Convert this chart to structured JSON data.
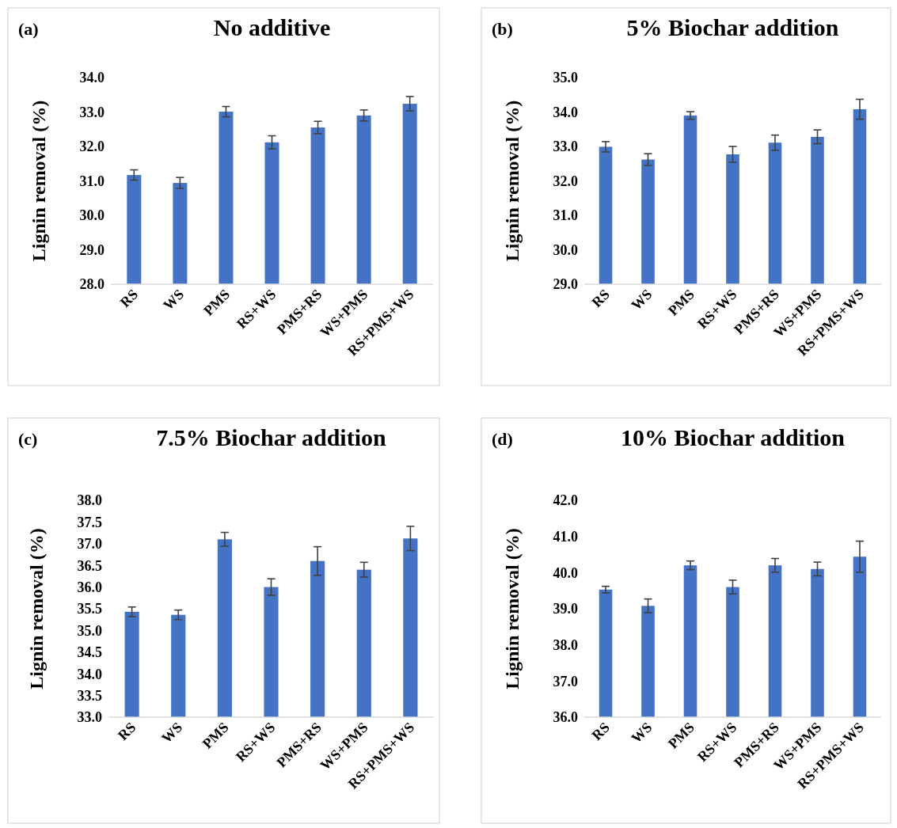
{
  "chart_data": [
    {
      "type": "bar",
      "title": "No additive",
      "ylabel": "Lignin removal (%)",
      "annotations": [
        "(a)"
      ],
      "categories": [
        "RS",
        "WS",
        "PMS",
        "RS+WS",
        "PMS+RS",
        "WS+PMS",
        "RS+PMS+WS"
      ],
      "color": "#4472c4",
      "values": [
        31.17,
        30.94,
        33.01,
        32.12,
        32.55,
        32.9,
        33.24
      ],
      "errors": [
        0.15,
        0.16,
        0.15,
        0.19,
        0.18,
        0.16,
        0.21
      ],
      "ylim": [
        28,
        34
      ],
      "yticks": [
        {
          "value": 28,
          "label": "28.0"
        },
        {
          "value": 29,
          "label": "29.0"
        },
        {
          "value": 30,
          "label": "30.0"
        },
        {
          "value": 31,
          "label": "31.0"
        },
        {
          "value": 32,
          "label": "32.0"
        },
        {
          "value": 33,
          "label": "33.0"
        },
        {
          "value": 34,
          "label": "34.0"
        }
      ]
    },
    {
      "type": "bar",
      "title": "5% Biochar addition",
      "ylabel": "Lignin removal (%)",
      "annotations": [
        "(b)"
      ],
      "categories": [
        "RS",
        "WS",
        "PMS",
        "RS+WS",
        "PMS+RS",
        "WS+PMS",
        "RS+PMS+WS"
      ],
      "color": "#4472c4",
      "values": [
        32.99,
        32.62,
        33.9,
        32.77,
        33.11,
        33.28,
        34.08
      ],
      "errors": [
        0.15,
        0.17,
        0.11,
        0.23,
        0.22,
        0.2,
        0.29
      ],
      "ylim": [
        29,
        35
      ],
      "yticks": [
        {
          "value": 29,
          "label": "29.0"
        },
        {
          "value": 30,
          "label": "30.0"
        },
        {
          "value": 31,
          "label": "31.0"
        },
        {
          "value": 32,
          "label": "32.0"
        },
        {
          "value": 33,
          "label": "33.0"
        },
        {
          "value": 34,
          "label": "34.0"
        },
        {
          "value": 35,
          "label": "35.0"
        }
      ]
    },
    {
      "type": "bar",
      "title": "7.5% Biochar addition",
      "ylabel": "Lignin removal (%)",
      "annotations": [
        "(c)"
      ],
      "categories": [
        "RS",
        "WS",
        "PMS",
        "RS+WS",
        "PMS+RS",
        "WS+PMS",
        "RS+PMS+WS"
      ],
      "color": "#4472c4",
      "values": [
        35.43,
        35.36,
        37.1,
        36.0,
        36.6,
        36.4,
        37.12
      ],
      "errors": [
        0.11,
        0.11,
        0.16,
        0.19,
        0.33,
        0.17,
        0.28
      ],
      "ylim": [
        33,
        38
      ],
      "yticks": [
        {
          "value": 33,
          "label": "33.0"
        },
        33.5,
        {
          "value": 34,
          "label": "34.0"
        },
        34.5,
        {
          "value": 35,
          "label": "35.0"
        },
        35.5,
        {
          "value": 36,
          "label": "36.0"
        },
        36.5,
        {
          "value": 37,
          "label": "37.0"
        },
        37.5,
        {
          "value": 38,
          "label": "38.0"
        }
      ]
    },
    {
      "type": "bar",
      "title": "10% Biochar addition",
      "ylabel": "Lignin removal (%)",
      "annotations": [
        "(d)"
      ],
      "categories": [
        "RS",
        "WS",
        "PMS",
        "RS+WS",
        "PMS+RS",
        "WS+PMS",
        "RS+PMS+WS"
      ],
      "color": "#4472c4",
      "values": [
        39.53,
        39.08,
        40.2,
        39.6,
        40.2,
        40.1,
        40.44
      ],
      "errors": [
        0.09,
        0.19,
        0.12,
        0.19,
        0.19,
        0.19,
        0.43
      ],
      "ylim": [
        36,
        42
      ],
      "yticks": [
        {
          "value": 36,
          "label": "36.0"
        },
        {
          "value": 37,
          "label": "37.0"
        },
        {
          "value": 38,
          "label": "38.0"
        },
        {
          "value": 39,
          "label": "39.0"
        },
        {
          "value": 40,
          "label": "40.0"
        },
        {
          "value": 41,
          "label": "41.0"
        },
        {
          "value": 42,
          "label": "42.0"
        }
      ]
    }
  ]
}
